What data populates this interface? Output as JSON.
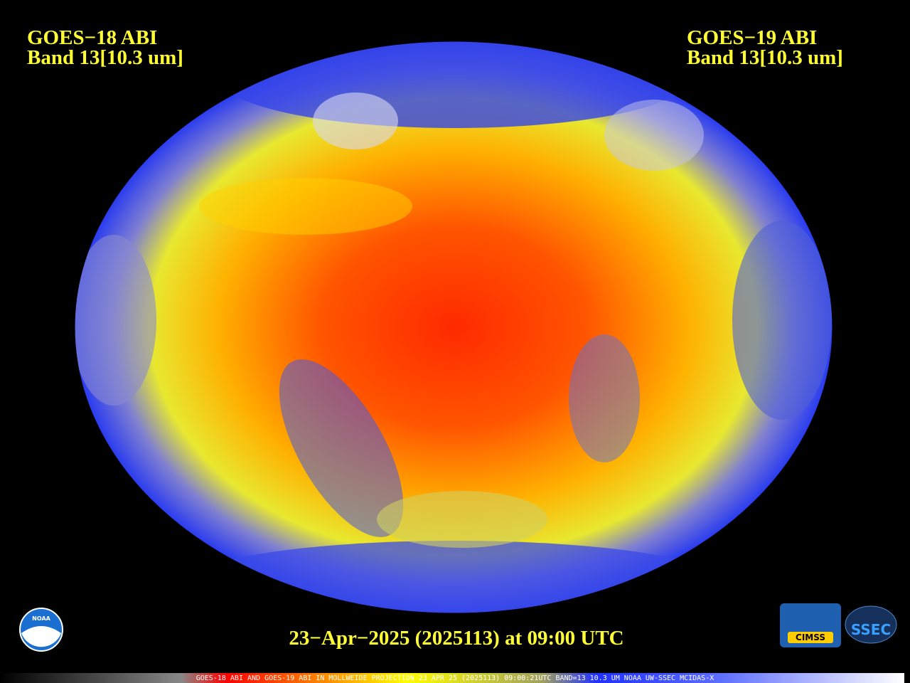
{
  "header": {
    "left": {
      "satellite": "GOES−18 ABI",
      "band": "Band 13[10.3 um]"
    },
    "right": {
      "satellite": "GOES−19 ABI",
      "band": "Band 13[10.3 um]"
    }
  },
  "timestamp": "23−Apr−2025 (2025113) at 09:00 UTC",
  "caption": "GOES-18 ABI AND GOES-19 ABI IN MOLLWEIDE PROJECTION 23 APR 25 (2025113) 09:00:21UTC BAND=13 10.3 UM NOAA UW-SSEC MCIDAS-X",
  "logos": {
    "noaa": "NOAA",
    "cimss": "CIMSS",
    "ssec": "SSEC"
  }
}
